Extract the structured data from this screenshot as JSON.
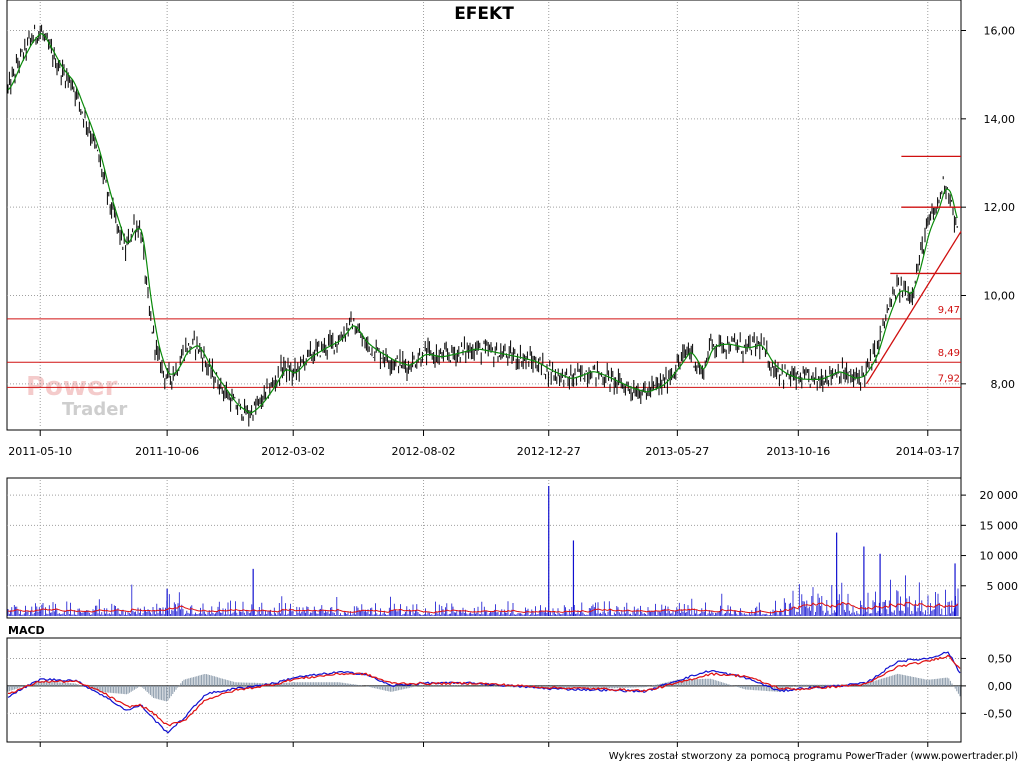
{
  "chart_data": [
    {
      "type": "line",
      "title": "EFEKT",
      "x_ticks": [
        "2011-05-10",
        "2011-10-06",
        "2012-03-02",
        "2012-08-02",
        "2012-12-27",
        "2013-05-27",
        "2013-10-16",
        "2014-03-17"
      ],
      "x_range": [
        "2011-04-01",
        "2014-04-25"
      ],
      "y_ticks": [
        "8,00",
        "10,00",
        "12,00",
        "14,00",
        "16,00"
      ],
      "ylim": [
        7.0,
        16.6
      ],
      "grid": true,
      "series": [
        {
          "values": [
            [
              "2011-04-01",
              14.6
            ],
            [
              "2011-04-15",
              15.3
            ],
            [
              "2011-04-29",
              15.8
            ],
            [
              "2011-05-10",
              16.0
            ],
            [
              "2011-05-20",
              15.6
            ],
            [
              "2011-06-03",
              15.1
            ],
            [
              "2011-06-17",
              14.8
            ],
            [
              "2011-06-28",
              14.2
            ],
            [
              "2011-07-08",
              13.7
            ],
            [
              "2011-07-18",
              13.1
            ],
            [
              "2011-07-29",
              12.2
            ],
            [
              "2011-08-08",
              11.6
            ],
            [
              "2011-08-18",
              11.0
            ],
            [
              "2011-08-28",
              11.6
            ],
            [
              "2011-09-05",
              11.5
            ],
            [
              "2011-09-15",
              9.6
            ],
            [
              "2011-09-25",
              8.6
            ],
            [
              "2011-10-06",
              8.1
            ],
            [
              "2011-10-16",
              8.3
            ],
            [
              "2011-10-28",
              8.8
            ],
            [
              "2011-11-10",
              8.9
            ],
            [
              "2011-11-25",
              8.3
            ],
            [
              "2011-12-10",
              7.9
            ],
            [
              "2011-12-25",
              7.5
            ],
            [
              "2012-01-10",
              7.3
            ],
            [
              "2012-01-25",
              7.6
            ],
            [
              "2012-02-08",
              8.0
            ],
            [
              "2012-02-20",
              8.4
            ],
            [
              "2012-03-02",
              8.2
            ],
            [
              "2012-03-18",
              8.6
            ],
            [
              "2012-04-05",
              8.8
            ],
            [
              "2012-04-25",
              9.0
            ],
            [
              "2012-05-10",
              9.4
            ],
            [
              "2012-05-25",
              8.9
            ],
            [
              "2012-06-10",
              8.7
            ],
            [
              "2012-06-28",
              8.5
            ],
            [
              "2012-07-15",
              8.4
            ],
            [
              "2012-08-02",
              8.7
            ],
            [
              "2012-08-20",
              8.6
            ],
            [
              "2012-09-10",
              8.7
            ],
            [
              "2012-10-01",
              8.8
            ],
            [
              "2012-10-25",
              8.7
            ],
            [
              "2012-11-20",
              8.6
            ],
            [
              "2012-12-10",
              8.5
            ],
            [
              "2012-12-27",
              8.3
            ],
            [
              "2013-01-20",
              8.1
            ],
            [
              "2013-02-15",
              8.3
            ],
            [
              "2013-03-10",
              8.1
            ],
            [
              "2013-04-01",
              7.9
            ],
            [
              "2013-04-20",
              7.8
            ],
            [
              "2013-05-10",
              8.0
            ],
            [
              "2013-05-27",
              8.4
            ],
            [
              "2013-06-10",
              8.8
            ],
            [
              "2013-06-25",
              8.2
            ],
            [
              "2013-07-05",
              8.9
            ],
            [
              "2013-07-25",
              8.9
            ],
            [
              "2013-08-15",
              8.8
            ],
            [
              "2013-09-01",
              8.9
            ],
            [
              "2013-09-15",
              8.4
            ],
            [
              "2013-10-01",
              8.2
            ],
            [
              "2013-10-16",
              8.1
            ],
            [
              "2013-11-10",
              8.1
            ],
            [
              "2013-12-01",
              8.3
            ],
            [
              "2013-12-20",
              8.1
            ],
            [
              "2014-01-01",
              8.2
            ],
            [
              "2014-01-15",
              8.7
            ],
            [
              "2014-01-28",
              9.6
            ],
            [
              "2014-02-10",
              10.2
            ],
            [
              "2014-02-25",
              10.0
            ],
            [
              "2014-03-05",
              10.6
            ],
            [
              "2014-03-17",
              11.6
            ],
            [
              "2014-03-28",
              12.0
            ],
            [
              "2014-04-05",
              12.6
            ],
            [
              "2014-04-12",
              12.3
            ],
            [
              "2014-04-18",
              11.6
            ],
            [
              "2014-04-22",
              11.4
            ]
          ]
        }
      ],
      "levels": [
        {
          "value": 9.47,
          "label": "9,47",
          "color": "#d01010"
        },
        {
          "value": 8.49,
          "label": "8,49",
          "color": "#d01010"
        },
        {
          "value": 7.92,
          "label": "7,92",
          "color": "#d01010"
        }
      ],
      "trend_lines": [
        {
          "from": [
            "2014-01-04",
            8.0
          ],
          "to": [
            "2014-04-25",
            11.45
          ]
        },
        {
          "from": [
            "2014-02-14",
            13.15
          ],
          "to": [
            "2014-04-25",
            13.15
          ]
        },
        {
          "from": [
            "2014-02-14",
            12.0
          ],
          "to": [
            "2014-04-25",
            12.0
          ]
        },
        {
          "from": [
            "2014-02-01",
            10.5
          ],
          "to": [
            "2014-04-25",
            10.5
          ]
        }
      ],
      "colors": {
        "price": "#000000",
        "average": "#0a8a0a",
        "level": "#d01010"
      }
    },
    {
      "type": "bar",
      "y_ticks": [
        "5 000",
        "10 000",
        "15 000",
        "20 000"
      ],
      "ylim": [
        0,
        22500
      ],
      "peaks": [
        {
          "date": "2011-10-06",
          "value": 4500
        },
        {
          "date": "2012-01-15",
          "value": 7800
        },
        {
          "date": "2012-12-27",
          "value": 21500
        },
        {
          "date": "2013-01-25",
          "value": 12500
        },
        {
          "date": "2013-11-30",
          "value": 13800
        },
        {
          "date": "2014-01-01",
          "value": 11500
        },
        {
          "date": "2014-01-20",
          "value": 10300
        },
        {
          "date": "2014-04-18",
          "value": 8700
        }
      ],
      "colors": {
        "bars": "#1010d0",
        "average": "#e01010"
      }
    },
    {
      "type": "line",
      "title": "MACD",
      "y_ticks": [
        "0,50",
        "0,00",
        "-0,50"
      ],
      "ylim": [
        -0.95,
        0.8
      ],
      "series": [
        {
          "values": [
            [
              "2011-04-01",
              -0.2
            ],
            [
              "2011-05-10",
              0.12
            ],
            [
              "2011-06-20",
              0.1
            ],
            [
              "2011-07-20",
              -0.15
            ],
            [
              "2011-08-20",
              -0.45
            ],
            [
              "2011-09-05",
              -0.35
            ],
            [
              "2011-09-20",
              -0.6
            ],
            [
              "2011-10-06",
              -0.85
            ],
            [
              "2011-10-25",
              -0.6
            ],
            [
              "2011-11-20",
              -0.15
            ],
            [
              "2011-12-25",
              -0.05
            ],
            [
              "2012-02-10",
              0.05
            ],
            [
              "2012-03-02",
              0.15
            ],
            [
              "2012-04-25",
              0.25
            ],
            [
              "2012-05-25",
              0.22
            ],
            [
              "2012-06-25",
              0.0
            ],
            [
              "2012-08-02",
              0.05
            ],
            [
              "2012-10-01",
              0.05
            ],
            [
              "2012-12-27",
              -0.05
            ],
            [
              "2013-03-10",
              -0.08
            ],
            [
              "2013-04-20",
              -0.1
            ],
            [
              "2013-05-27",
              0.1
            ],
            [
              "2013-07-05",
              0.28
            ],
            [
              "2013-08-15",
              0.15
            ],
            [
              "2013-09-25",
              -0.1
            ],
            [
              "2013-10-16",
              -0.05
            ],
            [
              "2013-12-01",
              0.0
            ],
            [
              "2014-01-04",
              0.05
            ],
            [
              "2014-02-10",
              0.45
            ],
            [
              "2014-03-17",
              0.5
            ],
            [
              "2014-04-10",
              0.62
            ],
            [
              "2014-04-25",
              0.2
            ]
          ],
          "color": "#1010d0"
        },
        {
          "values": [
            [
              "2011-04-01",
              -0.15
            ],
            [
              "2011-05-10",
              0.08
            ],
            [
              "2011-06-20",
              0.08
            ],
            [
              "2011-07-20",
              -0.1
            ],
            [
              "2011-08-20",
              -0.38
            ],
            [
              "2011-09-05",
              -0.35
            ],
            [
              "2011-09-20",
              -0.5
            ],
            [
              "2011-10-06",
              -0.72
            ],
            [
              "2011-10-25",
              -0.65
            ],
            [
              "2011-11-20",
              -0.25
            ],
            [
              "2011-12-25",
              -0.08
            ],
            [
              "2012-02-10",
              0.03
            ],
            [
              "2012-03-02",
              0.12
            ],
            [
              "2012-04-25",
              0.22
            ],
            [
              "2012-05-25",
              0.22
            ],
            [
              "2012-06-25",
              0.05
            ],
            [
              "2012-08-02",
              0.04
            ],
            [
              "2012-10-01",
              0.05
            ],
            [
              "2012-12-27",
              -0.03
            ],
            [
              "2013-03-10",
              -0.06
            ],
            [
              "2013-04-20",
              -0.09
            ],
            [
              "2013-05-27",
              0.05
            ],
            [
              "2013-07-05",
              0.22
            ],
            [
              "2013-08-15",
              0.18
            ],
            [
              "2013-09-25",
              -0.05
            ],
            [
              "2013-10-16",
              -0.06
            ],
            [
              "2013-12-01",
              -0.01
            ],
            [
              "2014-01-04",
              0.03
            ],
            [
              "2014-02-10",
              0.35
            ],
            [
              "2014-03-17",
              0.45
            ],
            [
              "2014-04-10",
              0.55
            ],
            [
              "2014-04-25",
              0.3
            ]
          ],
          "color": "#e01010"
        }
      ],
      "colors": {
        "histogram": "#8a9aaa"
      }
    }
  ],
  "watermark": {
    "line1": "Power",
    "line2": "Trader"
  },
  "footer": "Wykres został stworzony za pomocą programu PowerTrader (www.powertrader.pl)"
}
